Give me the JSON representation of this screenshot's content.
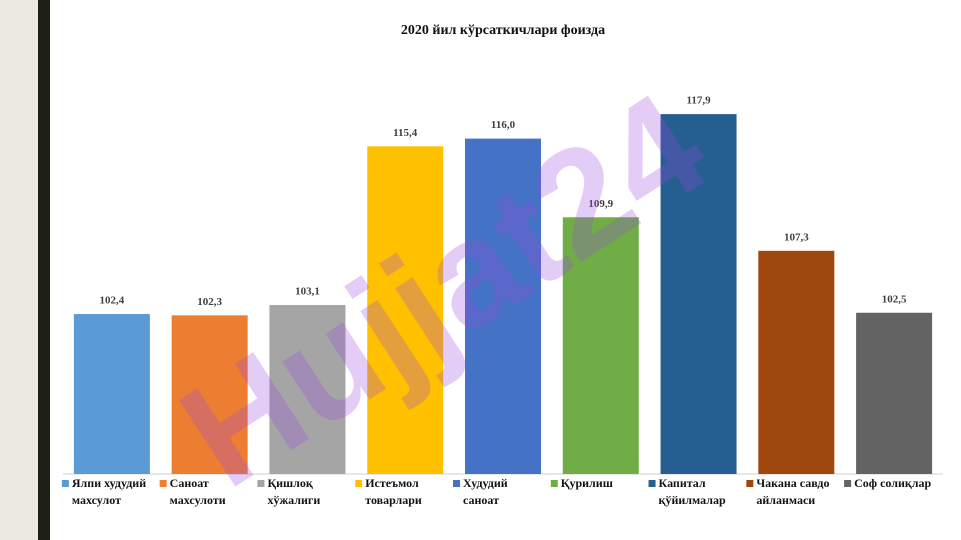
{
  "chart_data": {
    "type": "bar",
    "title": "2020 йил кўрсаткичлари фоизда",
    "watermark": "Hujjat24",
    "categories": [
      [
        "Ялпи худудий",
        "махсулот"
      ],
      [
        "Саноат",
        "махсулоти"
      ],
      [
        "Қишлоқ",
        "хўжалиги"
      ],
      [
        "Истеъмол",
        "товарлари"
      ],
      [
        "Худудий",
        "саноат"
      ],
      [
        "Қурилиш"
      ],
      [
        "Капитал",
        "қўйилмалар"
      ],
      [
        "Чакана савдо",
        "айланмаси"
      ],
      [
        "Соф солиқлар"
      ]
    ],
    "values": [
      102.4,
      102.3,
      103.1,
      115.4,
      116.0,
      109.9,
      117.9,
      107.3,
      102.5
    ],
    "value_labels": [
      "102,4",
      "102,3",
      "103,1",
      "115,4",
      "116,0",
      "109,9",
      "117,9",
      "107,3",
      "102,5"
    ],
    "colors": [
      "#5b9bd5",
      "#ed7d31",
      "#a5a5a5",
      "#ffc000",
      "#4472c4",
      "#70ad47",
      "#255e91",
      "#9e480e",
      "#636363"
    ],
    "ylim": [
      90,
      120
    ]
  }
}
